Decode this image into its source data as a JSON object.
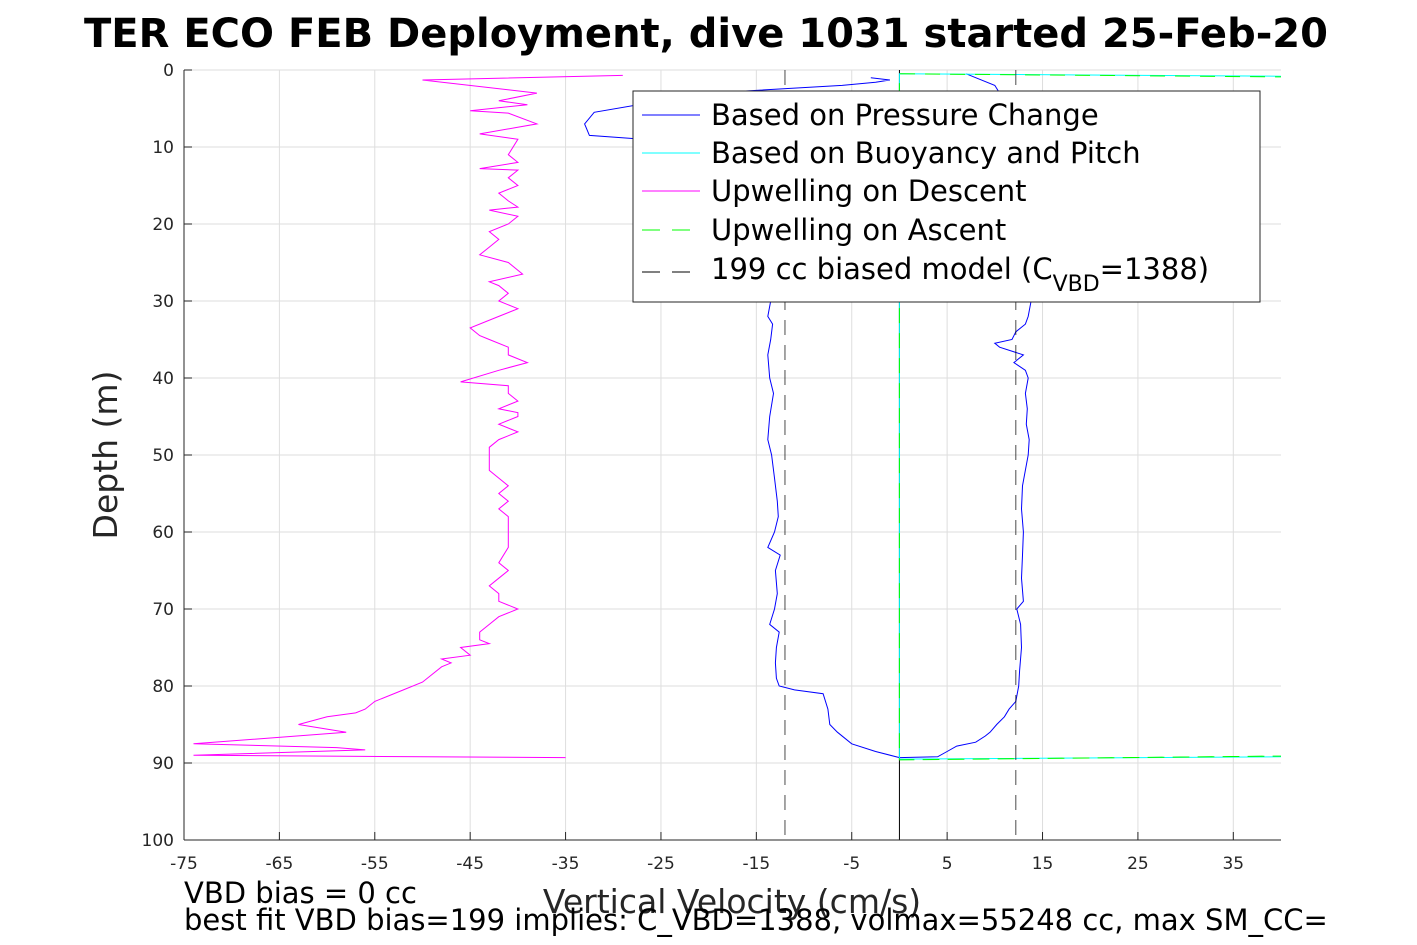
{
  "chart_data": {
    "type": "line",
    "title": "TER ECO FEB Deployment, dive 1031 started 25-Feb-20",
    "xlabel": "Vertical Velocity (cm/s)",
    "ylabel": "Depth (m)",
    "xlim": [
      -75,
      40
    ],
    "ylim": [
      0,
      100
    ],
    "y_reversed": true,
    "grid": true,
    "xticks": [
      -75,
      -65,
      -55,
      -45,
      -35,
      -25,
      -15,
      -5,
      5,
      15,
      25,
      35
    ],
    "yticks": [
      0,
      10,
      20,
      30,
      40,
      50,
      60,
      70,
      80,
      90,
      100
    ],
    "legend_location": "top-right",
    "series": [
      {
        "name": "Based on Pressure Change",
        "color": "#0000ff",
        "style": "solid",
        "points": [
          [
            -3,
            1
          ],
          [
            -1,
            1.3
          ],
          [
            -2.5,
            1.6
          ],
          [
            -6,
            2
          ],
          [
            -20,
            3
          ],
          [
            -25,
            4
          ],
          [
            -32,
            5.5
          ],
          [
            -33,
            7
          ],
          [
            -32.5,
            8.5
          ],
          [
            -10,
            10.5
          ],
          [
            -9.5,
            12
          ],
          [
            -9.8,
            15
          ],
          [
            -10,
            18
          ],
          [
            -11,
            21
          ],
          [
            -12.5,
            24
          ],
          [
            -13,
            27
          ],
          [
            -13.5,
            30
          ],
          [
            -13.8,
            32
          ],
          [
            -13.3,
            33
          ],
          [
            -13.5,
            35
          ],
          [
            -13.8,
            37
          ],
          [
            -13.6,
            40
          ],
          [
            -13.2,
            42
          ],
          [
            -13.6,
            45
          ],
          [
            -13.8,
            48
          ],
          [
            -13.4,
            50
          ],
          [
            -13.1,
            53
          ],
          [
            -12.8,
            56
          ],
          [
            -12.7,
            58
          ],
          [
            -13.1,
            60
          ],
          [
            -13.8,
            62
          ],
          [
            -12.5,
            63
          ],
          [
            -13,
            65
          ],
          [
            -12.8,
            68
          ],
          [
            -13.1,
            70
          ],
          [
            -13.6,
            72
          ],
          [
            -12.6,
            73
          ],
          [
            -12.9,
            75
          ],
          [
            -13,
            77
          ],
          [
            -12.9,
            79
          ],
          [
            -12.6,
            80
          ],
          [
            -11,
            80.5
          ],
          [
            -8,
            81
          ],
          [
            -7.5,
            83
          ],
          [
            -7.3,
            85
          ],
          [
            -6.5,
            86
          ],
          [
            -5,
            87.5
          ],
          [
            -2.5,
            88.5
          ],
          [
            0,
            89.3
          ],
          [
            4,
            89.2
          ],
          [
            5,
            88.5
          ],
          [
            6,
            87.8
          ],
          [
            8,
            87.3
          ],
          [
            9,
            86.5
          ],
          [
            9.5,
            86
          ],
          [
            10.2,
            85
          ],
          [
            11,
            84
          ],
          [
            11.5,
            83
          ],
          [
            12.2,
            82
          ],
          [
            12.5,
            80
          ],
          [
            12.6,
            78
          ],
          [
            12.8,
            75
          ],
          [
            12.7,
            72
          ],
          [
            12.3,
            70
          ],
          [
            13,
            69
          ],
          [
            12.8,
            66
          ],
          [
            12.9,
            63
          ],
          [
            13,
            60
          ],
          [
            12.8,
            57
          ],
          [
            12.9,
            54
          ],
          [
            13.5,
            50
          ],
          [
            13.6,
            48
          ],
          [
            13.3,
            46
          ],
          [
            13.4,
            44
          ],
          [
            13.2,
            42
          ],
          [
            13.5,
            40
          ],
          [
            13.2,
            39
          ],
          [
            12,
            38
          ],
          [
            13,
            37
          ],
          [
            10.5,
            36
          ],
          [
            10,
            35.5
          ],
          [
            11.8,
            35
          ],
          [
            12.2,
            34
          ],
          [
            13.2,
            33
          ],
          [
            13.5,
            32
          ],
          [
            13.8,
            30
          ],
          [
            13.8,
            28
          ],
          [
            13.7,
            25
          ],
          [
            13.6,
            22
          ],
          [
            13.6,
            20
          ],
          [
            13.5,
            18
          ],
          [
            13.3,
            15
          ],
          [
            13.2,
            12
          ],
          [
            13,
            10
          ],
          [
            12.9,
            8
          ],
          [
            12.5,
            6
          ],
          [
            11,
            4
          ],
          [
            10,
            2
          ],
          [
            8,
            1
          ],
          [
            7,
            0.5
          ]
        ]
      },
      {
        "name": "Based on Buoyancy and Pitch",
        "color": "#00ffff",
        "style": "solid",
        "points": [
          [
            0,
            89.5
          ],
          [
            40,
            89.2
          ],
          [
            0,
            89.5
          ],
          [
            0,
            0.5
          ],
          [
            40,
            0.8
          ]
        ]
      },
      {
        "name": "Upwelling on Descent",
        "color": "#ff00ff",
        "style": "solid",
        "points": [
          [
            -29,
            0.7
          ],
          [
            -50,
            1.3
          ],
          [
            -38,
            3
          ],
          [
            -42,
            4
          ],
          [
            -39,
            4.5
          ],
          [
            -45,
            5.3
          ],
          [
            -41,
            5.6
          ],
          [
            -38,
            7
          ],
          [
            -44,
            8.3
          ],
          [
            -40,
            9
          ],
          [
            -41,
            11
          ],
          [
            -40,
            12
          ],
          [
            -44,
            12.8
          ],
          [
            -40,
            13
          ],
          [
            -41,
            14
          ],
          [
            -40,
            15
          ],
          [
            -42,
            16
          ],
          [
            -41,
            17
          ],
          [
            -40,
            17.8
          ],
          [
            -43,
            18.2
          ],
          [
            -40,
            19
          ],
          [
            -41,
            20
          ],
          [
            -43,
            21
          ],
          [
            -42,
            22
          ],
          [
            -43,
            23
          ],
          [
            -44,
            24
          ],
          [
            -41,
            25
          ],
          [
            -39.5,
            26.5
          ],
          [
            -43,
            27.5
          ],
          [
            -42,
            28
          ],
          [
            -41,
            29
          ],
          [
            -42,
            30
          ],
          [
            -40,
            31
          ],
          [
            -42,
            32
          ],
          [
            -45,
            33.5
          ],
          [
            -44,
            34.5
          ],
          [
            -43,
            35
          ],
          [
            -41,
            36
          ],
          [
            -41,
            37
          ],
          [
            -39,
            38
          ],
          [
            -42,
            39
          ],
          [
            -46,
            40.5
          ],
          [
            -41,
            41
          ],
          [
            -41,
            42
          ],
          [
            -40,
            43
          ],
          [
            -42,
            44
          ],
          [
            -40,
            44.5
          ],
          [
            -40,
            45
          ],
          [
            -42,
            46
          ],
          [
            -40,
            47
          ],
          [
            -42,
            48
          ],
          [
            -43,
            49
          ],
          [
            -43,
            50
          ],
          [
            -43,
            52
          ],
          [
            -42,
            53
          ],
          [
            -41,
            54
          ],
          [
            -42,
            55
          ],
          [
            -41,
            56
          ],
          [
            -42,
            57
          ],
          [
            -41,
            58
          ],
          [
            -41,
            60
          ],
          [
            -41,
            62
          ],
          [
            -42,
            64
          ],
          [
            -41,
            65
          ],
          [
            -42,
            66
          ],
          [
            -43,
            67
          ],
          [
            -42,
            68
          ],
          [
            -42,
            69
          ],
          [
            -40,
            70
          ],
          [
            -42,
            71
          ],
          [
            -43,
            72
          ],
          [
            -44,
            73
          ],
          [
            -44,
            74
          ],
          [
            -43,
            74.5
          ],
          [
            -46,
            75
          ],
          [
            -45,
            76
          ],
          [
            -48,
            76.5
          ],
          [
            -47,
            77
          ],
          [
            -48,
            77.5
          ],
          [
            -49,
            78.5
          ],
          [
            -50,
            79.5
          ],
          [
            -52,
            80.5
          ],
          [
            -55,
            82
          ],
          [
            -56,
            83
          ],
          [
            -57,
            83.5
          ],
          [
            -60,
            84
          ],
          [
            -63,
            85
          ],
          [
            -58,
            86
          ],
          [
            -74,
            87.5
          ],
          [
            -59,
            88
          ],
          [
            -56,
            88.3
          ],
          [
            -74,
            89
          ],
          [
            -35,
            89.3
          ]
        ]
      },
      {
        "name": "Upwelling on Ascent",
        "color": "#00ff00",
        "style": "dashed",
        "points": [
          [
            0,
            89.6
          ],
          [
            40,
            89.1
          ],
          [
            0,
            89.6
          ],
          [
            0,
            0.5
          ],
          [
            40,
            0.9
          ]
        ]
      },
      {
        "name": "199 cc biased model (C_VBD=1388)",
        "color": "#000000",
        "style": "dashed",
        "lines_at_x": [
          -12,
          12.2
        ]
      }
    ],
    "zero_line_x": 0
  },
  "legend": {
    "entries": [
      {
        "label": "Based on Pressure Change",
        "color": "#0000ff",
        "dash": "none"
      },
      {
        "label": "Based on Buoyancy and Pitch",
        "color": "#00ffff",
        "dash": "none"
      },
      {
        "label": "Upwelling on Descent",
        "color": "#ff00ff",
        "dash": "none"
      },
      {
        "label": "Upwelling on Ascent",
        "color": "#00ff00",
        "dash": "dashed"
      }
    ],
    "model_entry": {
      "prefix": "199 cc biased model (C",
      "subscript": "VBD",
      "suffix": "=1388)",
      "color": "#000000"
    }
  },
  "footer": {
    "line1": "VBD bias = 0 cc",
    "line2": "best fit VBD bias=199 implies: C_VBD=1388, volmax=55248 cc, max SM_CC="
  }
}
